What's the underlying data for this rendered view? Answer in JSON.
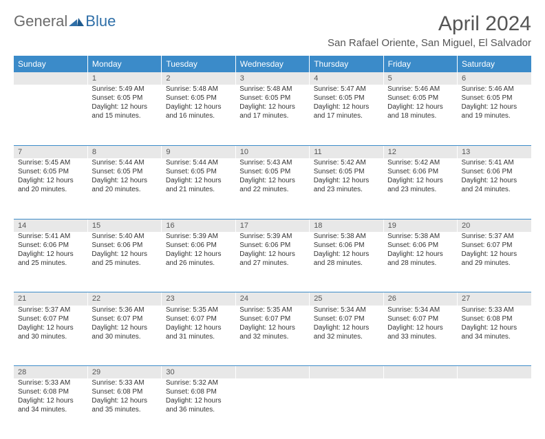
{
  "logo": {
    "text1": "General",
    "text2": "Blue",
    "color1": "#6b6b6b",
    "color2": "#2f6fa8"
  },
  "title": "April 2024",
  "location": "San Rafael Oriente, San Miguel, El Salvador",
  "header_bg": "#3b8bc9",
  "daynum_bg": "#e8e8e8",
  "weekdays": [
    "Sunday",
    "Monday",
    "Tuesday",
    "Wednesday",
    "Thursday",
    "Friday",
    "Saturday"
  ],
  "weeks": [
    {
      "nums": [
        "",
        "1",
        "2",
        "3",
        "4",
        "5",
        "6"
      ],
      "cells": [
        null,
        {
          "sr": "Sunrise: 5:49 AM",
          "ss": "Sunset: 6:05 PM",
          "d1": "Daylight: 12 hours",
          "d2": "and 15 minutes."
        },
        {
          "sr": "Sunrise: 5:48 AM",
          "ss": "Sunset: 6:05 PM",
          "d1": "Daylight: 12 hours",
          "d2": "and 16 minutes."
        },
        {
          "sr": "Sunrise: 5:48 AM",
          "ss": "Sunset: 6:05 PM",
          "d1": "Daylight: 12 hours",
          "d2": "and 17 minutes."
        },
        {
          "sr": "Sunrise: 5:47 AM",
          "ss": "Sunset: 6:05 PM",
          "d1": "Daylight: 12 hours",
          "d2": "and 17 minutes."
        },
        {
          "sr": "Sunrise: 5:46 AM",
          "ss": "Sunset: 6:05 PM",
          "d1": "Daylight: 12 hours",
          "d2": "and 18 minutes."
        },
        {
          "sr": "Sunrise: 5:46 AM",
          "ss": "Sunset: 6:05 PM",
          "d1": "Daylight: 12 hours",
          "d2": "and 19 minutes."
        }
      ]
    },
    {
      "nums": [
        "7",
        "8",
        "9",
        "10",
        "11",
        "12",
        "13"
      ],
      "cells": [
        {
          "sr": "Sunrise: 5:45 AM",
          "ss": "Sunset: 6:05 PM",
          "d1": "Daylight: 12 hours",
          "d2": "and 20 minutes."
        },
        {
          "sr": "Sunrise: 5:44 AM",
          "ss": "Sunset: 6:05 PM",
          "d1": "Daylight: 12 hours",
          "d2": "and 20 minutes."
        },
        {
          "sr": "Sunrise: 5:44 AM",
          "ss": "Sunset: 6:05 PM",
          "d1": "Daylight: 12 hours",
          "d2": "and 21 minutes."
        },
        {
          "sr": "Sunrise: 5:43 AM",
          "ss": "Sunset: 6:05 PM",
          "d1": "Daylight: 12 hours",
          "d2": "and 22 minutes."
        },
        {
          "sr": "Sunrise: 5:42 AM",
          "ss": "Sunset: 6:05 PM",
          "d1": "Daylight: 12 hours",
          "d2": "and 23 minutes."
        },
        {
          "sr": "Sunrise: 5:42 AM",
          "ss": "Sunset: 6:06 PM",
          "d1": "Daylight: 12 hours",
          "d2": "and 23 minutes."
        },
        {
          "sr": "Sunrise: 5:41 AM",
          "ss": "Sunset: 6:06 PM",
          "d1": "Daylight: 12 hours",
          "d2": "and 24 minutes."
        }
      ]
    },
    {
      "nums": [
        "14",
        "15",
        "16",
        "17",
        "18",
        "19",
        "20"
      ],
      "cells": [
        {
          "sr": "Sunrise: 5:41 AM",
          "ss": "Sunset: 6:06 PM",
          "d1": "Daylight: 12 hours",
          "d2": "and 25 minutes."
        },
        {
          "sr": "Sunrise: 5:40 AM",
          "ss": "Sunset: 6:06 PM",
          "d1": "Daylight: 12 hours",
          "d2": "and 25 minutes."
        },
        {
          "sr": "Sunrise: 5:39 AM",
          "ss": "Sunset: 6:06 PM",
          "d1": "Daylight: 12 hours",
          "d2": "and 26 minutes."
        },
        {
          "sr": "Sunrise: 5:39 AM",
          "ss": "Sunset: 6:06 PM",
          "d1": "Daylight: 12 hours",
          "d2": "and 27 minutes."
        },
        {
          "sr": "Sunrise: 5:38 AM",
          "ss": "Sunset: 6:06 PM",
          "d1": "Daylight: 12 hours",
          "d2": "and 28 minutes."
        },
        {
          "sr": "Sunrise: 5:38 AM",
          "ss": "Sunset: 6:06 PM",
          "d1": "Daylight: 12 hours",
          "d2": "and 28 minutes."
        },
        {
          "sr": "Sunrise: 5:37 AM",
          "ss": "Sunset: 6:07 PM",
          "d1": "Daylight: 12 hours",
          "d2": "and 29 minutes."
        }
      ]
    },
    {
      "nums": [
        "21",
        "22",
        "23",
        "24",
        "25",
        "26",
        "27"
      ],
      "cells": [
        {
          "sr": "Sunrise: 5:37 AM",
          "ss": "Sunset: 6:07 PM",
          "d1": "Daylight: 12 hours",
          "d2": "and 30 minutes."
        },
        {
          "sr": "Sunrise: 5:36 AM",
          "ss": "Sunset: 6:07 PM",
          "d1": "Daylight: 12 hours",
          "d2": "and 30 minutes."
        },
        {
          "sr": "Sunrise: 5:35 AM",
          "ss": "Sunset: 6:07 PM",
          "d1": "Daylight: 12 hours",
          "d2": "and 31 minutes."
        },
        {
          "sr": "Sunrise: 5:35 AM",
          "ss": "Sunset: 6:07 PM",
          "d1": "Daylight: 12 hours",
          "d2": "and 32 minutes."
        },
        {
          "sr": "Sunrise: 5:34 AM",
          "ss": "Sunset: 6:07 PM",
          "d1": "Daylight: 12 hours",
          "d2": "and 32 minutes."
        },
        {
          "sr": "Sunrise: 5:34 AM",
          "ss": "Sunset: 6:07 PM",
          "d1": "Daylight: 12 hours",
          "d2": "and 33 minutes."
        },
        {
          "sr": "Sunrise: 5:33 AM",
          "ss": "Sunset: 6:08 PM",
          "d1": "Daylight: 12 hours",
          "d2": "and 34 minutes."
        }
      ]
    },
    {
      "nums": [
        "28",
        "29",
        "30",
        "",
        "",
        "",
        ""
      ],
      "cells": [
        {
          "sr": "Sunrise: 5:33 AM",
          "ss": "Sunset: 6:08 PM",
          "d1": "Daylight: 12 hours",
          "d2": "and 34 minutes."
        },
        {
          "sr": "Sunrise: 5:33 AM",
          "ss": "Sunset: 6:08 PM",
          "d1": "Daylight: 12 hours",
          "d2": "and 35 minutes."
        },
        {
          "sr": "Sunrise: 5:32 AM",
          "ss": "Sunset: 6:08 PM",
          "d1": "Daylight: 12 hours",
          "d2": "and 36 minutes."
        },
        null,
        null,
        null,
        null
      ]
    }
  ]
}
